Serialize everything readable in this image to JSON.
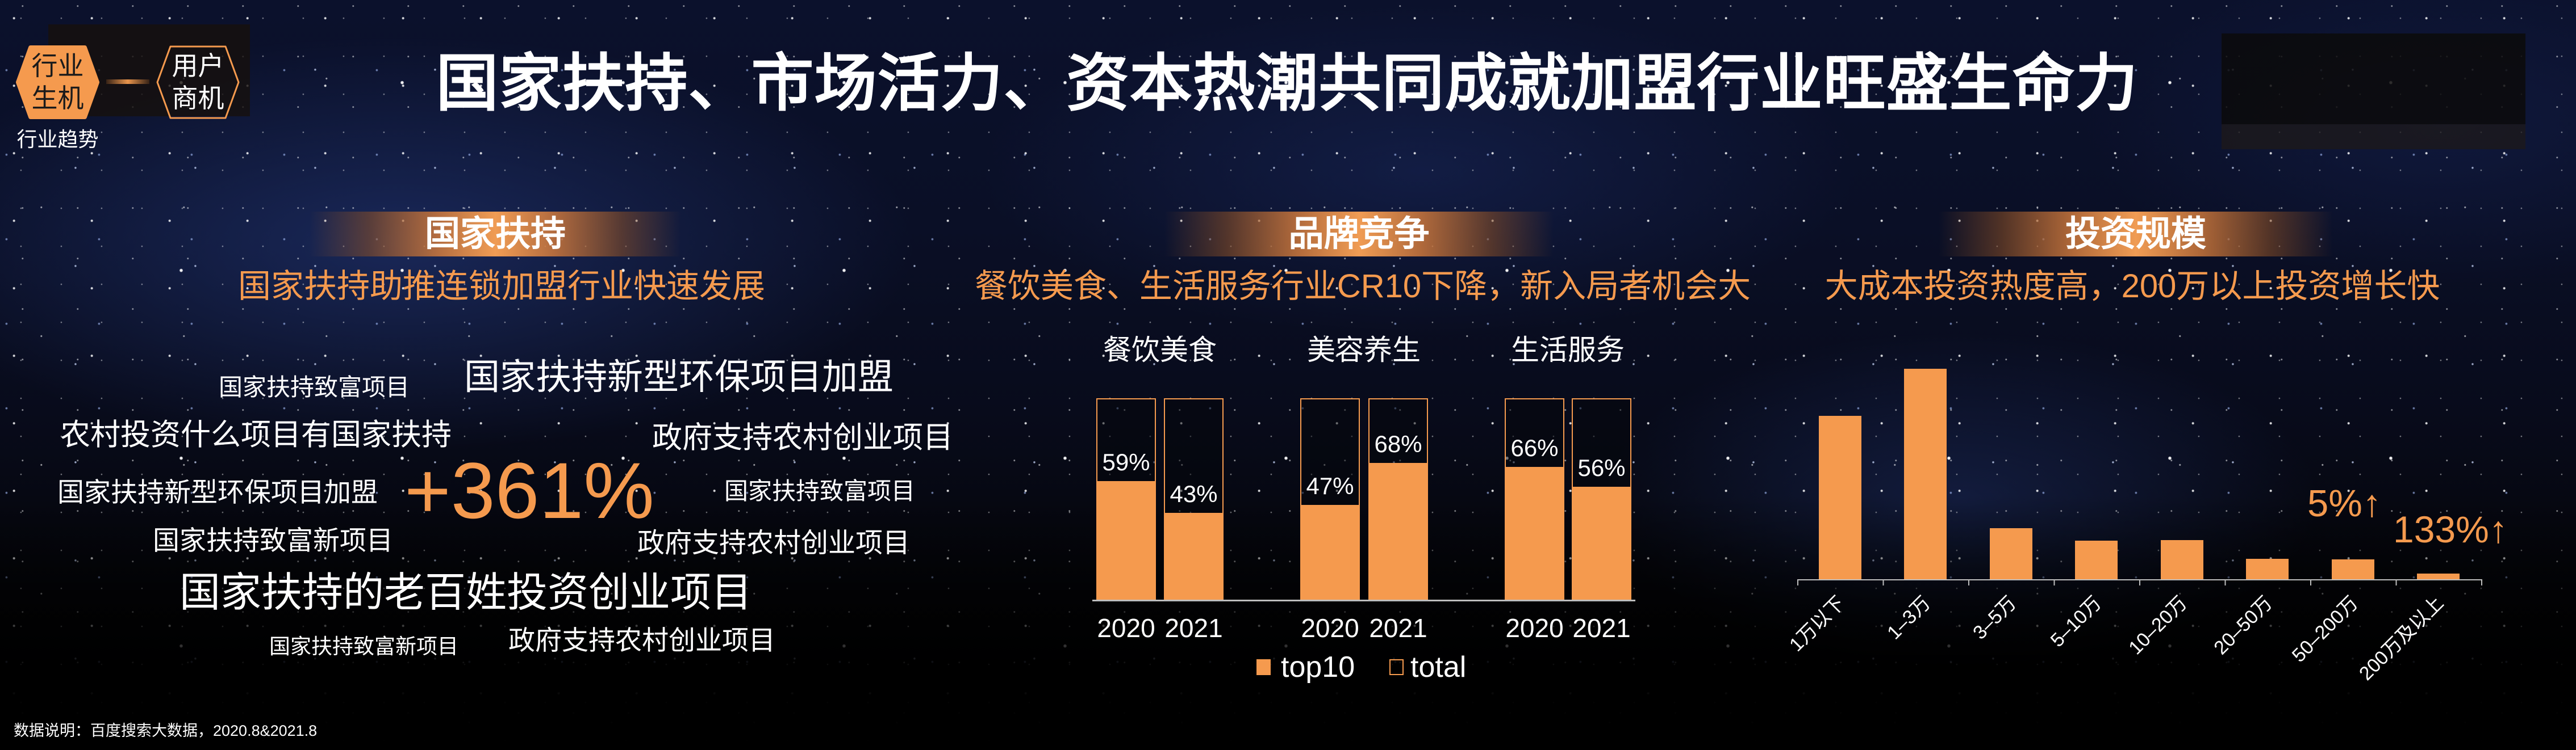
{
  "colors": {
    "accent": "#F59A4E",
    "text_primary": "#FFFFFF",
    "badge_text": "#1B1B1B",
    "axis_line": "#BDBDBD",
    "background": "#05070F"
  },
  "nav": {
    "tabs": [
      {
        "line1": "行业",
        "line2": "生机",
        "state": "active"
      },
      {
        "line1": "用户",
        "line2": "商机",
        "state": "inactive"
      }
    ],
    "section_label": "行业趋势"
  },
  "header": {
    "title": "国家扶持、市场活力、资本热潮共同成就加盟行业旺盛生命力"
  },
  "panels": {
    "policy": {
      "header": "国家扶持",
      "subtitle": "国家扶持助推连锁加盟行业快速发展",
      "highlight": "+361%",
      "keywords": [
        "国家扶持致富项目",
        "国家扶持新型环保项目加盟",
        "农村投资什么项目有国家扶持",
        "政府支持农村创业项目",
        "国家扶持新型环保项目加盟",
        "国家扶持致富项目",
        "国家扶持致富新项目",
        "政府支持农村创业项目",
        "国家扶持的老百姓投资创业项目",
        "国家扶持致富新项目",
        "政府支持农村创业项目"
      ]
    },
    "brand": {
      "header": "品牌竞争",
      "subtitle": "餐饮美食、生活服务行业CR10下降，新入局者机会大"
    },
    "investment": {
      "header": "投资规模",
      "subtitle": "大成本投资热度高，200万以上投资增长快"
    }
  },
  "footnote": "数据说明：百度搜索大数据，2020.8&2021.8",
  "chart_data": [
    {
      "type": "bar",
      "title": "品牌竞争",
      "subtitle": "餐饮美食、生活服务行业CR10下降，新入局者机会大",
      "groups": [
        "餐饮美食",
        "美容养生",
        "生活服务"
      ],
      "categories": [
        "2020",
        "2021",
        "2020",
        "2021",
        "2020",
        "2021"
      ],
      "series": [
        {
          "name": "top10",
          "values": [
            59,
            43,
            47,
            68,
            66,
            56
          ],
          "style": "filled"
        },
        {
          "name": "total",
          "values": [
            100,
            100,
            100,
            100,
            100,
            100
          ],
          "style": "outline"
        }
      ],
      "data_labels": [
        "59%",
        "43%",
        "47%",
        "68%",
        "66%",
        "56%"
      ],
      "legend": [
        "top10",
        "total"
      ],
      "legend_position": "bottom",
      "xlabel": "",
      "ylabel": "",
      "ylim": [
        0,
        100
      ],
      "grid": false
    },
    {
      "type": "bar",
      "title": "投资规模",
      "subtitle": "大成本投资热度高，200万以上投资增长快",
      "categories": [
        "1万以下",
        "1–3万",
        "3–5万",
        "5–10万",
        "10–20万",
        "20–50万",
        "50–200万",
        "200万及以上"
      ],
      "values": [
        77.7,
        100,
        24.5,
        18.5,
        18.8,
        9.9,
        9.7,
        3.0
      ],
      "xlabel": "",
      "ylabel": "",
      "ylim": [
        0,
        100
      ],
      "y_axis_visible": false,
      "x_tick_rotation": -45,
      "annotations": [
        {
          "text": "5%↑",
          "near_category": "50–200万"
        },
        {
          "text": "133%↑",
          "near_category": "200万及以上"
        }
      ],
      "grid": false
    }
  ]
}
